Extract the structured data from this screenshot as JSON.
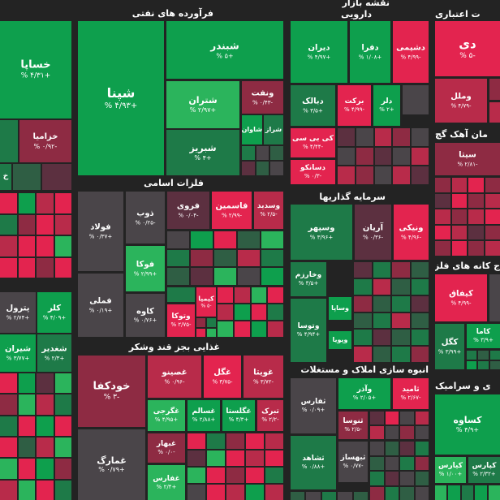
{
  "colors": {
    "background": "#232323",
    "strong_green": "#0e9f4d",
    "green": "#2bb45c",
    "dark_green": "#1e7a48",
    "olive_green": "#2f5e44",
    "strong_red": "#e3244f",
    "red": "#b82b4a",
    "dark_red": "#8e2b43",
    "muted_red": "#5c3040",
    "neutral": "#4a4549"
  },
  "headers": {
    "petroleum_products": "فرآورده های نفتی",
    "market_map": "نقشه بازار",
    "pharma": "دارویی",
    "credit_institutions": "ت اعتباری",
    "cement": "مان آهک گچ",
    "basic_metals": "فلزات اسامی",
    "investments": "سرمایه گذاریها",
    "metal_ores": "ج کانه های فلزی",
    "food": "غذایی بجز قند وشکر",
    "construction": "انبوه سازی املاک و مستغلات",
    "ceramics": "ی و سرامیک"
  },
  "tiles": {
    "khaspa": {
      "name": "خساپا",
      "pct": "+۴/۳۱ %"
    },
    "khazamia": {
      "name": "خزامیا",
      "pct": "-۰/۹۲ %"
    },
    "shepna": {
      "name": "شپنا",
      "pct": "+۴/۹۳ %"
    },
    "shebandar": {
      "name": "شبندر",
      "pct": "+۵ %"
    },
    "shetran": {
      "name": "شتران",
      "pct": "+۲/۹۷ %"
    },
    "shebriz": {
      "name": "شبریز",
      "pct": "+۴ %"
    },
    "vanaft": {
      "name": "ونفت",
      "pct": "-۰/۴۳ %"
    },
    "shalvan": {
      "name": "شاوان",
      "pct": ""
    },
    "sheraz": {
      "name": "شراز",
      "pct": ""
    },
    "diran": {
      "name": "دیران",
      "pct": "+۴/۹۷ %"
    },
    "dafra": {
      "name": "دفرا",
      "pct": "+۱/۰۸ %"
    },
    "dashimi": {
      "name": "دشیمی",
      "pct": "-۴/۹۹ %"
    },
    "dabalk": {
      "name": "دبالک",
      "pct": "+۳/۵ %"
    },
    "barakat": {
      "name": "برکت",
      "pct": "-۴/۹۹ %"
    },
    "delor": {
      "name": "دلر",
      "pct": "+۲ %"
    },
    "kibipi": {
      "name": "کی بی سی",
      "pct": "-۴/۴۴ %"
    },
    "dasanko": {
      "name": "دسانکو",
      "pct": "-۰/۳ %"
    },
    "di": {
      "name": "دی",
      "pct": "-۵ %"
    },
    "vamal": {
      "name": "وملل",
      "pct": "-۴/۷۹ %"
    },
    "sita": {
      "name": "سیتا",
      "pct": "-۲/۸۱ %"
    },
    "foolad": {
      "name": "فولاد",
      "pct": "+۰/۳۷ %"
    },
    "zob": {
      "name": "ذوب",
      "pct": "-۰/۲۵ %"
    },
    "foroy": {
      "name": "فروی",
      "pct": "-۰/۰۴ %"
    },
    "famasmin": {
      "name": "فاسمین",
      "pct": "-۲/۹۹ %"
    },
    "vasadid": {
      "name": "وسدید",
      "pct": "-۲/۵ %"
    },
    "fooka": {
      "name": "فوکا",
      "pct": "+۲/۹۹ %"
    },
    "felli": {
      "name": "فملی",
      "pct": "+۰/۱۹ %"
    },
    "kave": {
      "name": "کاوه",
      "pct": "+۰/۷۶ %"
    },
    "vatoka": {
      "name": "وتوکا",
      "pct": "-۲/۷۵ %"
    },
    "kimia": {
      "name": "کیمیا",
      "pct": "-۵ %"
    },
    "vasepahr": {
      "name": "وسپهر",
      "pct": "+۳/۹۶ %"
    },
    "aryan": {
      "name": "آریان",
      "pct": "-۰/۳۶ %"
    },
    "vanik": {
      "name": "ونیکی",
      "pct": "-۴/۹۶ %"
    },
    "vakharazm": {
      "name": "وخارزم",
      "pct": "+۳/۵ %"
    },
    "vasapa": {
      "name": "وساپا",
      "pct": ""
    },
    "vatoosa": {
      "name": "وتوسا",
      "pct": "+۴/۹۴ %"
    },
    "vapooya": {
      "name": "وپویا",
      "pct": ""
    },
    "kifaq": {
      "name": "کیفاق",
      "pct": "-۴/۹۹ %"
    },
    "kama": {
      "name": "کاما",
      "pct": "+۳/۹ %"
    },
    "kagol": {
      "name": "کگل",
      "pct": "+۳/۹۹ %"
    },
    "petrol": {
      "name": "پترول",
      "pct": "+۲/۷۴ %"
    },
    "kalar": {
      "name": "کلر",
      "pct": "+۴/۰۹ %"
    },
    "shiran": {
      "name": "شیران",
      "pct": "+۳/۷۷ %"
    },
    "shegadir": {
      "name": "شغدیر",
      "pct": "+۲/۳ %"
    },
    "khodkafa": {
      "name": "خودکفا",
      "pct": "-۳ %"
    },
    "ghasino": {
      "name": "غصینو",
      "pct": "-۰/۹۶ %"
    },
    "ghegol": {
      "name": "غگل",
      "pct": "-۳/۷۵ %"
    },
    "ghouita": {
      "name": "غویتا",
      "pct": "-۳/۷۲ %"
    },
    "ghakorji": {
      "name": "غگرجی",
      "pct": "+۴/۹۵ %"
    },
    "ghasalem": {
      "name": "غسالم",
      "pct": "+۲/۸۸ %"
    },
    "ghgolsta": {
      "name": "غگلستا",
      "pct": "+۴/۳ %"
    },
    "tabarak": {
      "name": "تبرک",
      "pct": "-۲/۲ %"
    },
    "ghamarg": {
      "name": "غمارگ",
      "pct": "+۰/۷۹ %"
    },
    "ghbhar": {
      "name": "غبهار",
      "pct": "-۰/۰ %"
    },
    "ghfars": {
      "name": "غفارس",
      "pct": "+۲/۴ %"
    },
    "vaazar": {
      "name": "وآذر",
      "pct": "+۲/۰۵ %"
    },
    "tamid": {
      "name": "ثامید",
      "pct": "-۲/۶۷ %"
    },
    "tafars": {
      "name": "ثفارس",
      "pct": "+۰/۰۹ %"
    },
    "tanusa": {
      "name": "ثنوسا",
      "pct": "-۲/۵ %"
    },
    "tashahd": {
      "name": "ثشاهد",
      "pct": "+۰/۸۸ %"
    },
    "tabahsaz": {
      "name": "ثبهساز",
      "pct": "-۰/۷۷ %"
    },
    "kasave": {
      "name": "کساوه",
      "pct": "+۴/۹ %"
    },
    "kiaras": {
      "name": "کیارس",
      "pct": "+۱/۰۰ %"
    },
    "kapars": {
      "name": "کپارس",
      "pct": "+۲/۳۲ %"
    },
    "kha": {
      "name": "خ",
      "pct": ""
    }
  }
}
